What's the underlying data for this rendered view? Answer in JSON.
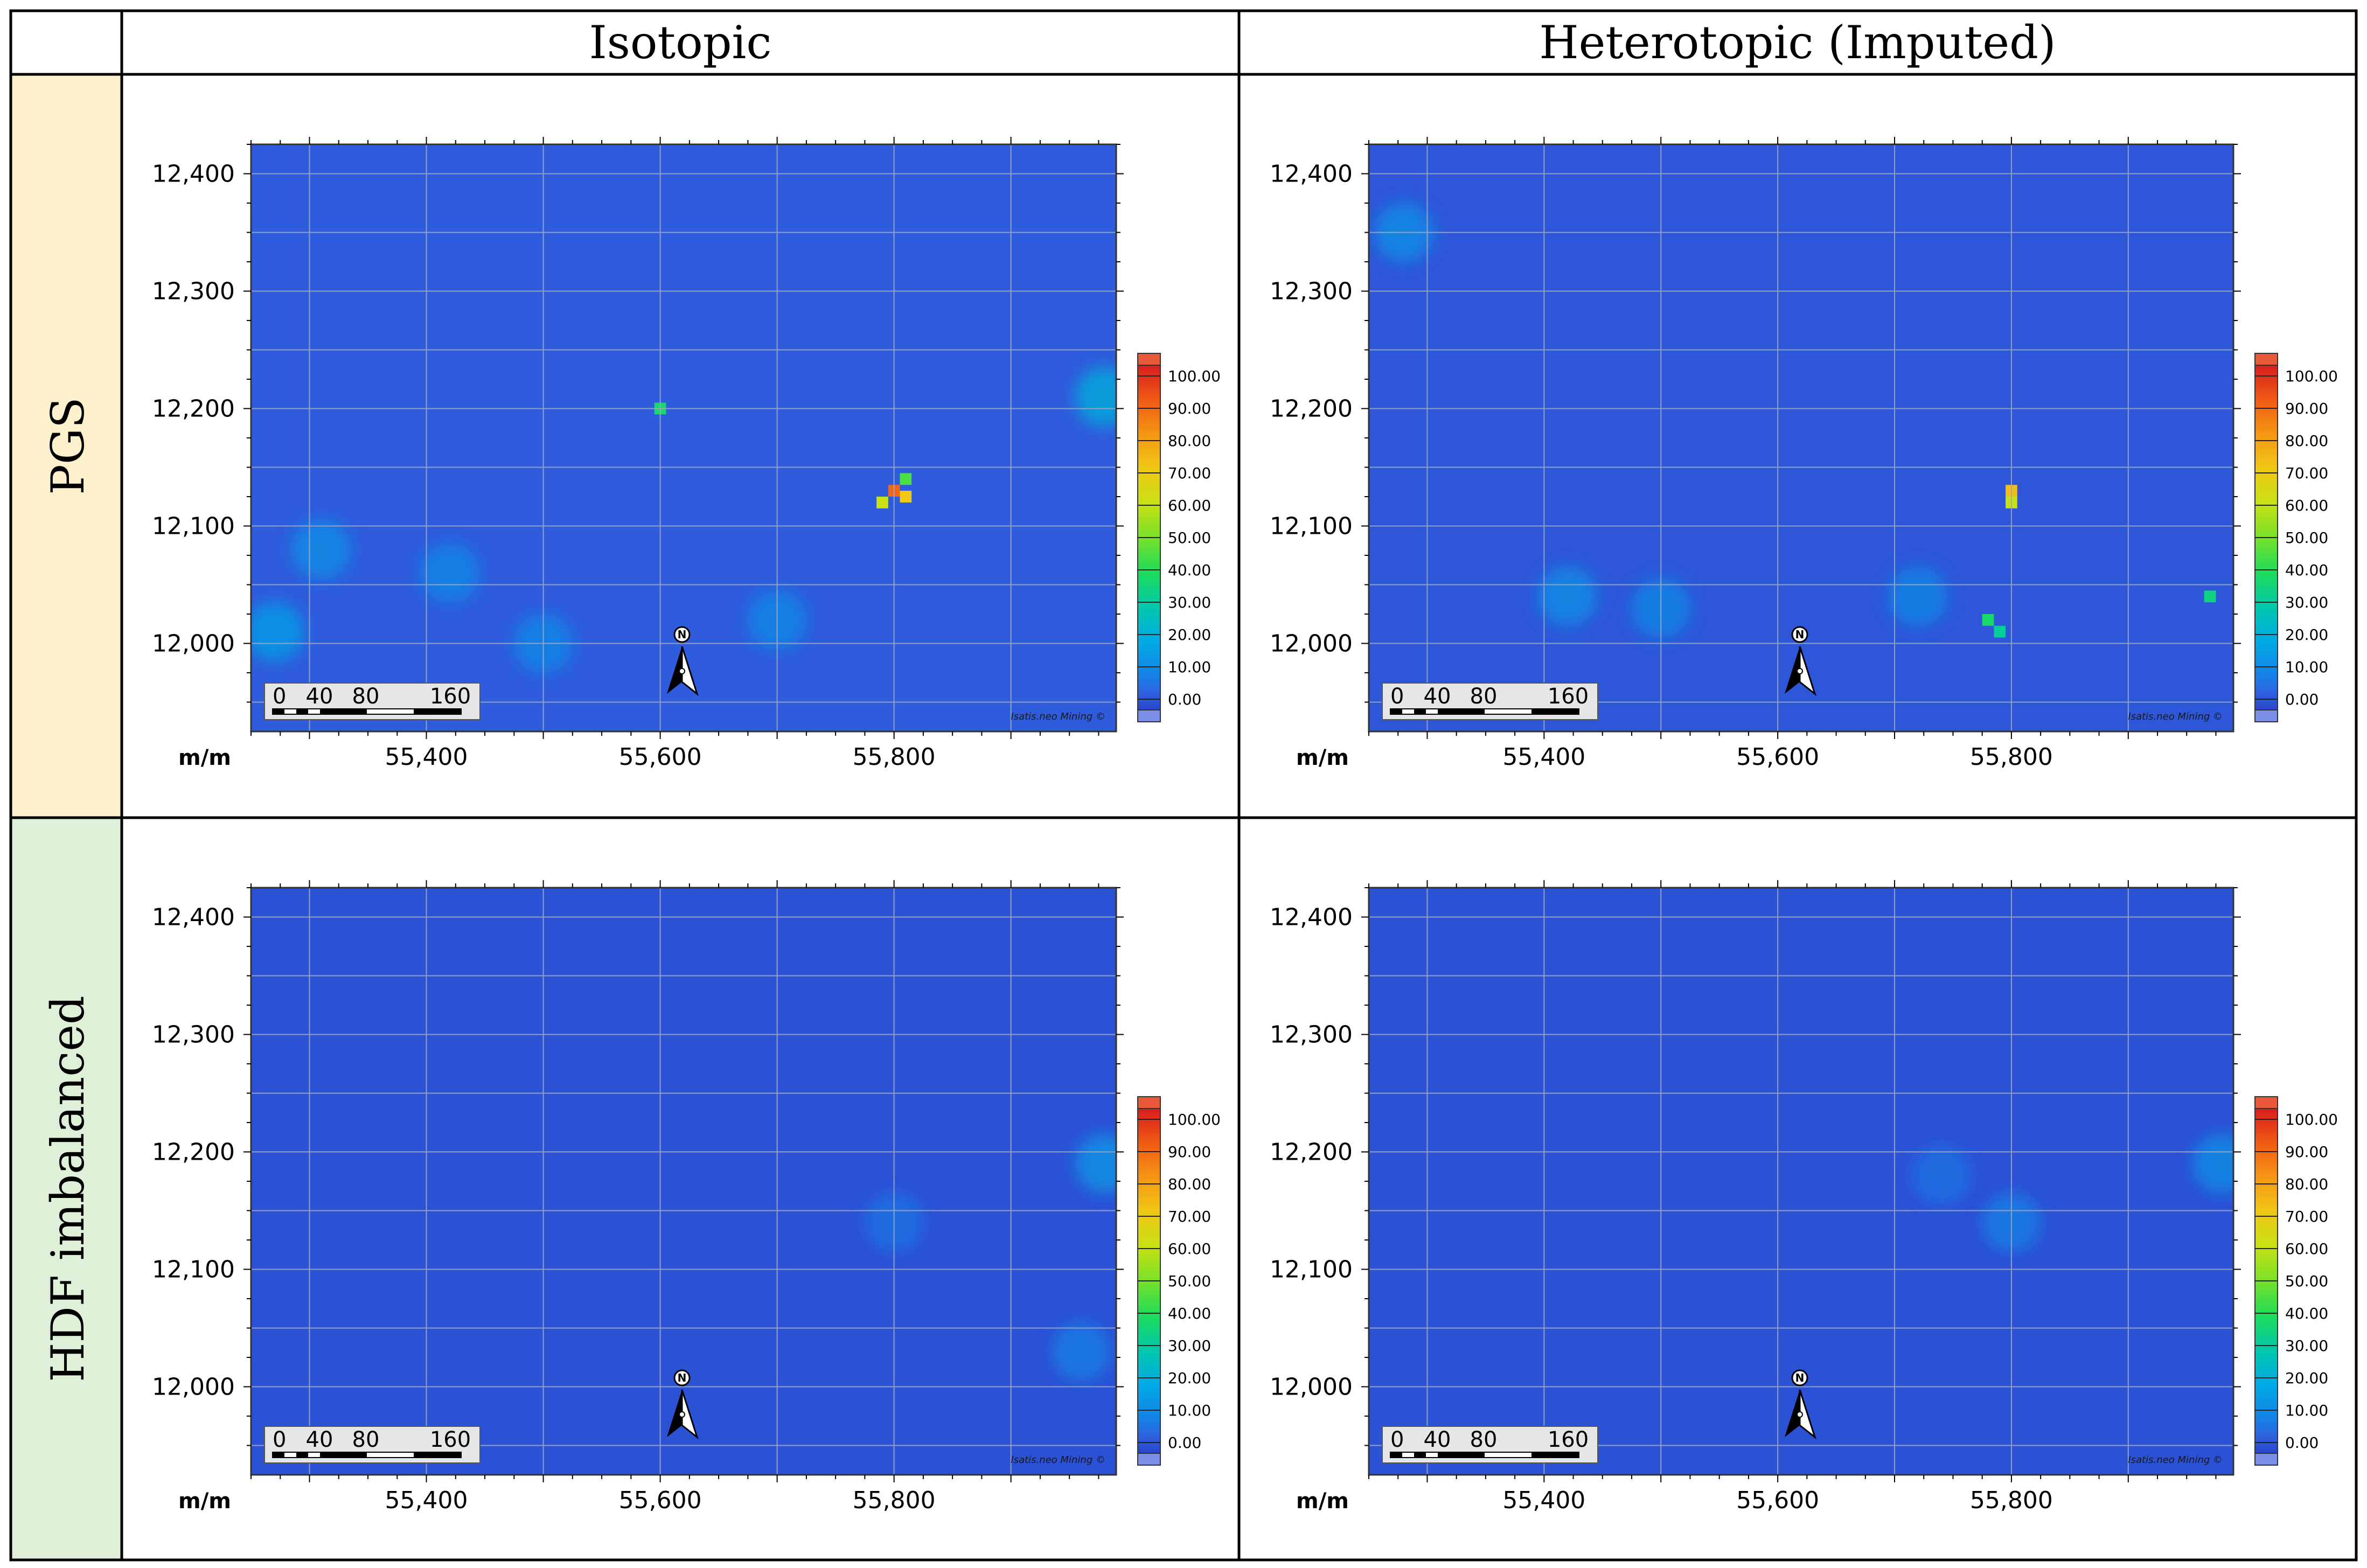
{
  "columns": [
    "Isotopic",
    "Heterotopic (Imputed)"
  ],
  "rows": [
    "PGS",
    "HDF imbalanced"
  ],
  "colors": {
    "grid_border": "#000000",
    "pgs_header_bg": "#fdf0cd",
    "hdf_header_bg": "#dff0d9",
    "map_background": "#2f62e0"
  },
  "north_arrow": {
    "label": "N"
  },
  "scale_bar": {
    "labels": [
      "0",
      "40",
      "80",
      "160"
    ]
  },
  "watermark": "Isatis.neo Mining ©",
  "axis_unit_label": "m/m",
  "chart_data": [
    {
      "type": "heatmap",
      "row": "PGS",
      "column": "Isotopic",
      "xlim": [
        55250,
        55990
      ],
      "ylim": [
        11925,
        12425
      ],
      "xticks": [
        "55,400",
        "55,600",
        "55,800"
      ],
      "xtick_values": [
        55400,
        55600,
        55800
      ],
      "yticks": [
        "12,400",
        "12,300",
        "12,200",
        "12,100",
        "12,000"
      ],
      "ytick_values": [
        12400,
        12300,
        12200,
        12100,
        12000
      ],
      "colorbar": {
        "min": 0,
        "max": 100,
        "labels": [
          "100.00",
          "90.00",
          "80.00",
          "70.00",
          "60.00",
          "50.00",
          "40.00",
          "30.00",
          "20.00",
          "10.00",
          "0.00"
        ]
      },
      "background_value": 4,
      "hotspots": [
        {
          "x": 55800,
          "y": 12130,
          "value": 88
        },
        {
          "x": 55810,
          "y": 12125,
          "value": 70
        },
        {
          "x": 55790,
          "y": 12120,
          "value": 60
        },
        {
          "x": 55810,
          "y": 12140,
          "value": 45
        },
        {
          "x": 55600,
          "y": 12200,
          "value": 38
        },
        {
          "x": 55980,
          "y": 12210,
          "value": 22
        },
        {
          "x": 55270,
          "y": 12010,
          "value": 18
        },
        {
          "x": 55310,
          "y": 12080,
          "value": 14
        },
        {
          "x": 55420,
          "y": 12060,
          "value": 12
        },
        {
          "x": 55500,
          "y": 12000,
          "value": 12
        },
        {
          "x": 55700,
          "y": 12020,
          "value": 12
        }
      ]
    },
    {
      "type": "heatmap",
      "row": "PGS",
      "column": "Heterotopic (Imputed)",
      "xlim": [
        55250,
        55990
      ],
      "ylim": [
        11925,
        12425
      ],
      "xticks": [
        "55,400",
        "55,600",
        "55,800"
      ],
      "xtick_values": [
        55400,
        55600,
        55800
      ],
      "yticks": [
        "12,400",
        "12,300",
        "12,200",
        "12,100",
        "12,000"
      ],
      "ytick_values": [
        12400,
        12300,
        12200,
        12100,
        12000
      ],
      "colorbar": {
        "min": 0,
        "max": 100,
        "labels": [
          "100.00",
          "90.00",
          "80.00",
          "70.00",
          "60.00",
          "50.00",
          "40.00",
          "30.00",
          "20.00",
          "10.00",
          "0.00"
        ]
      },
      "background_value": 3,
      "hotspots": [
        {
          "x": 55800,
          "y": 12130,
          "value": 72
        },
        {
          "x": 55800,
          "y": 12120,
          "value": 60
        },
        {
          "x": 55780,
          "y": 12020,
          "value": 38
        },
        {
          "x": 55790,
          "y": 12010,
          "value": 32
        },
        {
          "x": 55970,
          "y": 12040,
          "value": 35
        },
        {
          "x": 55280,
          "y": 12350,
          "value": 14
        },
        {
          "x": 55420,
          "y": 12040,
          "value": 14
        },
        {
          "x": 55500,
          "y": 12030,
          "value": 12
        },
        {
          "x": 55720,
          "y": 12040,
          "value": 12
        }
      ]
    },
    {
      "type": "heatmap",
      "row": "HDF imbalanced",
      "column": "Isotopic",
      "xlim": [
        55250,
        55990
      ],
      "ylim": [
        11925,
        12425
      ],
      "xticks": [
        "55,400",
        "55,600",
        "55,800"
      ],
      "xtick_values": [
        55400,
        55600,
        55800
      ],
      "yticks": [
        "12,400",
        "12,300",
        "12,200",
        "12,100",
        "12,000"
      ],
      "ytick_values": [
        12400,
        12300,
        12200,
        12100,
        12000
      ],
      "colorbar": {
        "min": 0,
        "max": 100,
        "labels": [
          "100.00",
          "90.00",
          "80.00",
          "70.00",
          "60.00",
          "50.00",
          "40.00",
          "30.00",
          "20.00",
          "10.00",
          "0.00"
        ]
      },
      "background_value": 2,
      "hotspots": [
        {
          "x": 55980,
          "y": 12190,
          "value": 16
        },
        {
          "x": 55960,
          "y": 12030,
          "value": 10
        },
        {
          "x": 55800,
          "y": 12140,
          "value": 8
        }
      ]
    },
    {
      "type": "heatmap",
      "row": "HDF imbalanced",
      "column": "Heterotopic (Imputed)",
      "xlim": [
        55250,
        55990
      ],
      "ylim": [
        11925,
        12425
      ],
      "xticks": [
        "55,400",
        "55,600",
        "55,800"
      ],
      "xtick_values": [
        55400,
        55600,
        55800
      ],
      "yticks": [
        "12,400",
        "12,300",
        "12,200",
        "12,100",
        "12,000"
      ],
      "ytick_values": [
        12400,
        12300,
        12200,
        12100,
        12000
      ],
      "colorbar": {
        "min": 0,
        "max": 100,
        "labels": [
          "100.00",
          "90.00",
          "80.00",
          "70.00",
          "60.00",
          "50.00",
          "40.00",
          "30.00",
          "20.00",
          "10.00",
          "0.00"
        ]
      },
      "background_value": 2,
      "hotspots": [
        {
          "x": 55980,
          "y": 12190,
          "value": 14
        },
        {
          "x": 55800,
          "y": 12140,
          "value": 10
        },
        {
          "x": 55740,
          "y": 12180,
          "value": 8
        }
      ]
    }
  ]
}
